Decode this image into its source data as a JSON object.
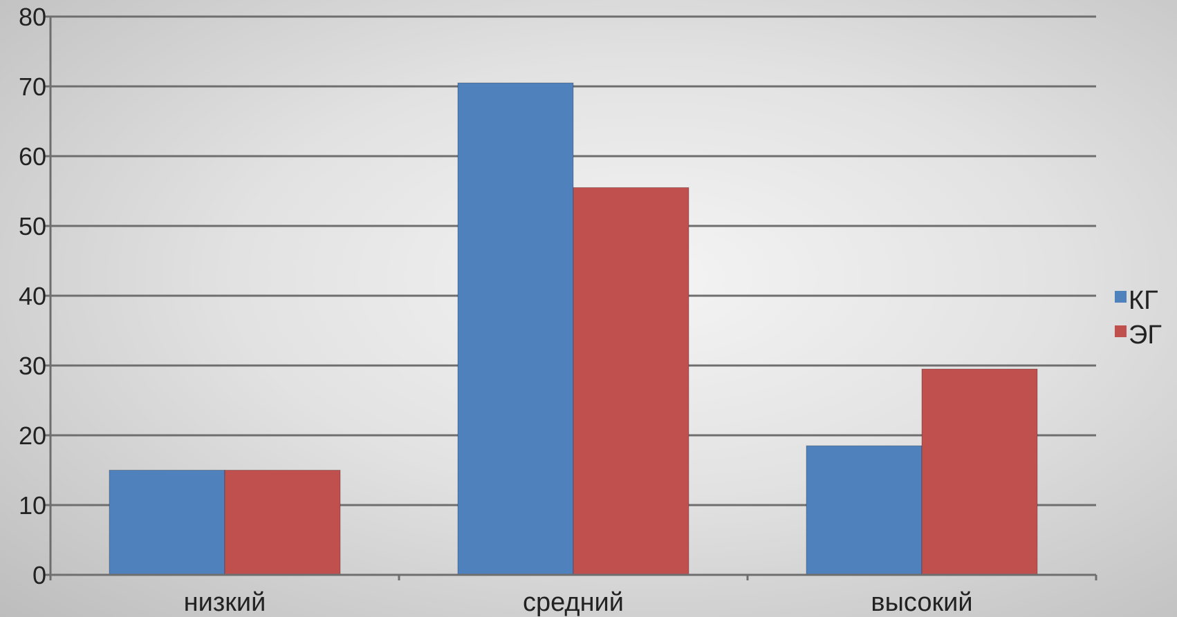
{
  "chart_data": {
    "type": "bar",
    "categories": [
      "низкий",
      "средний",
      "высокий"
    ],
    "series": [
      {
        "name": "КГ",
        "color": "#4f81bd",
        "values": [
          15,
          70.5,
          18.5
        ]
      },
      {
        "name": "ЭГ",
        "color": "#c0504d",
        "values": [
          15,
          55.5,
          29.5
        ]
      }
    ],
    "ylim": [
      0,
      80
    ],
    "yticks": [
      0,
      10,
      20,
      30,
      40,
      50,
      60,
      70,
      80
    ],
    "grid": true,
    "legend": "right",
    "title": "",
    "xlabel": "",
    "ylabel": ""
  }
}
